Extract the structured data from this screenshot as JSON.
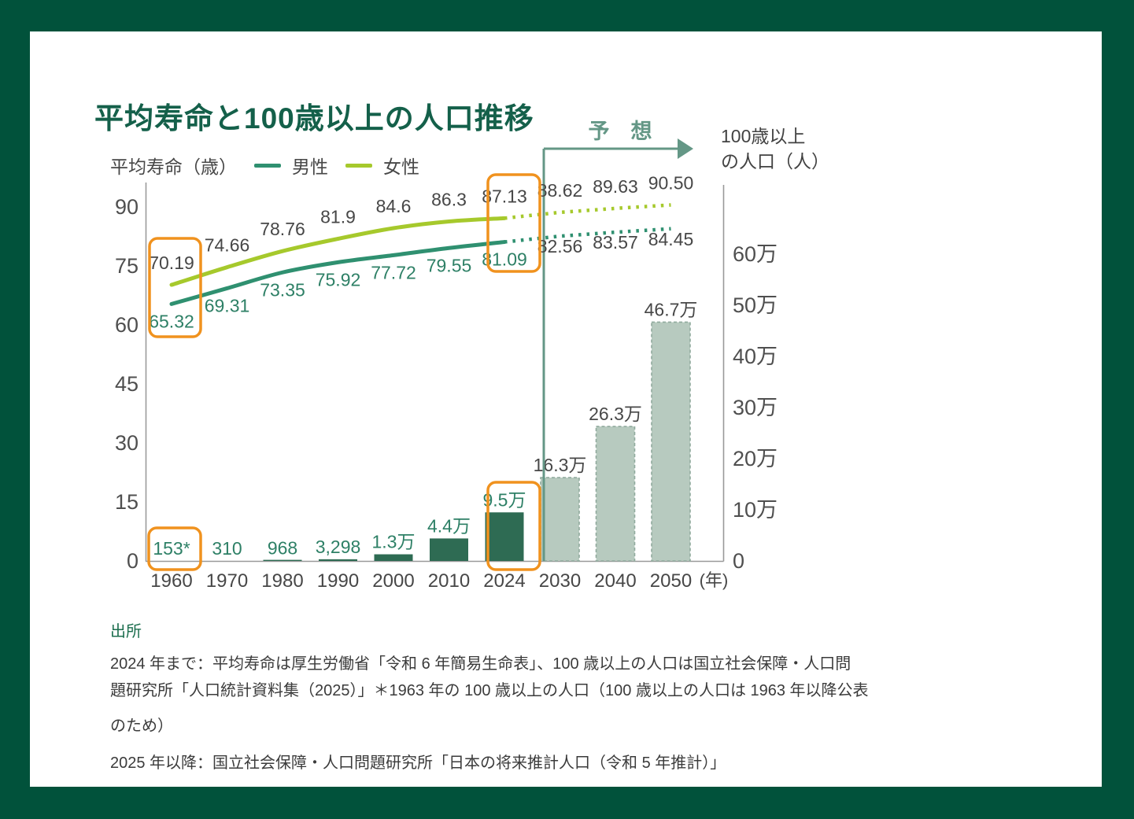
{
  "title": "平均寿命と100歳以上の人口推移",
  "left_axis_caption": "平均寿命（歳）",
  "right_axis_caption_line1": "100歳以上",
  "right_axis_caption_line2": "の人口（人）",
  "forecast_label": "予　想",
  "x_unit_label": "(年)",
  "legend": [
    {
      "label": "男性",
      "color": "#2f9070"
    },
    {
      "label": "女性",
      "color": "#a6c92c"
    }
  ],
  "source": {
    "heading": "出所",
    "line1": "2024 年まで：平均寿命は厚生労働省「令和 6 年簡易生命表」、100 歳以上の人口は国立社会保障・人口問",
    "line2": "題研究所「人口統計資料集（2025）」＊1963 年の 100 歳以上の人口（100 歳以上の人口は 1963 年以降公表",
    "line3": "のため）",
    "line4": "2025 年以降：国立社会保障・人口問題研究所「日本の将来推計人口（令和 5 年推計）」"
  },
  "chart_data": {
    "type": "line+bar combo",
    "categories": [
      "1960",
      "1970",
      "1980",
      "1990",
      "2000",
      "2010",
      "2024",
      "2030",
      "2040",
      "2050"
    ],
    "forecast_from_index": 7,
    "left_axis": {
      "label": "平均寿命（歳）",
      "ticks": [
        0,
        15,
        30,
        45,
        60,
        75,
        90
      ],
      "range": [
        0,
        90
      ]
    },
    "right_axis": {
      "label": "100歳以上の人口（人）",
      "tick_labels": [
        "0",
        "10万",
        "20万",
        "30万",
        "40万",
        "50万",
        "60万"
      ],
      "tick_values": [
        0,
        100000,
        200000,
        300000,
        400000,
        500000,
        600000
      ],
      "range": [
        0,
        650000
      ]
    },
    "series": [
      {
        "name": "女性",
        "type": "line",
        "axis": "left",
        "color": "#a6c92c",
        "values": [
          70.19,
          74.66,
          78.76,
          81.9,
          84.6,
          86.3,
          87.13,
          88.62,
          89.63,
          90.5
        ],
        "labels": [
          "70.19",
          "74.66",
          "78.76",
          "81.9",
          "84.6",
          "86.3",
          "87.13",
          "88.62",
          "89.63",
          "90.50"
        ]
      },
      {
        "name": "男性",
        "type": "line",
        "axis": "left",
        "color": "#2f9070",
        "values": [
          65.32,
          69.31,
          73.35,
          75.92,
          77.72,
          79.55,
          81.09,
          82.56,
          83.57,
          84.45
        ],
        "labels": [
          "65.32",
          "69.31",
          "73.35",
          "75.92",
          "77.72",
          "79.55",
          "81.09",
          "82.56",
          "83.57",
          "84.45"
        ]
      },
      {
        "name": "100歳以上の人口",
        "type": "bar",
        "axis": "right",
        "values": [
          153,
          310,
          968,
          3298,
          13000,
          44000,
          95000,
          163000,
          263000,
          467000
        ],
        "labels": [
          "153*",
          "310",
          "968",
          "3,298",
          "1.3万",
          "4.4万",
          "9.5万",
          "16.3万",
          "26.3万",
          "46.7万"
        ]
      }
    ],
    "annotations": {
      "forecast_text": "予　想",
      "highlighted_years": [
        "1960",
        "2024"
      ]
    }
  },
  "colors": {
    "frame": "#01523b",
    "card": "#ffffff",
    "title_green": "#14604a",
    "male_line": "#2f9070",
    "female_line": "#a6c92c",
    "bar_historical": "#2e6b53",
    "bar_forecast_fill": "#b7cabf",
    "bar_forecast_stroke": "#90aa9d",
    "axis_gray": "#9a9a9a",
    "tick_text": "#4f4f4f",
    "label_gray": "#474747",
    "value_green": "#2e8066",
    "forecast_accent": "#649786",
    "highlight_orange": "#f0921e",
    "source_green": "#1c6e4e"
  }
}
